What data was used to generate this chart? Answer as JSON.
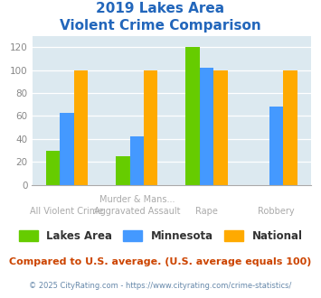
{
  "title_line1": "2019 Lakes Area",
  "title_line2": "Violent Crime Comparison",
  "category_labels_top": [
    "",
    "Murder & Mans...",
    "",
    ""
  ],
  "category_labels_bottom": [
    "All Violent Crime",
    "Aggravated Assault",
    "Rape",
    "Robbery"
  ],
  "series": {
    "Lakes Area": [
      30,
      25,
      120,
      0
    ],
    "Minnesota": [
      63,
      42,
      102,
      68
    ],
    "National": [
      100,
      100,
      100,
      100
    ]
  },
  "colors": {
    "Lakes Area": "#66cc00",
    "Minnesota": "#4499ff",
    "National": "#ffaa00"
  },
  "ylim": [
    0,
    130
  ],
  "yticks": [
    0,
    20,
    40,
    60,
    80,
    100,
    120
  ],
  "background_color": "#dce9f0",
  "title_color": "#2266bb",
  "footer_text": "Compared to U.S. average. (U.S. average equals 100)",
  "copyright_text": "© 2025 CityRating.com - https://www.cityrating.com/crime-statistics/",
  "footer_color": "#cc4400",
  "copyright_color": "#6688aa"
}
